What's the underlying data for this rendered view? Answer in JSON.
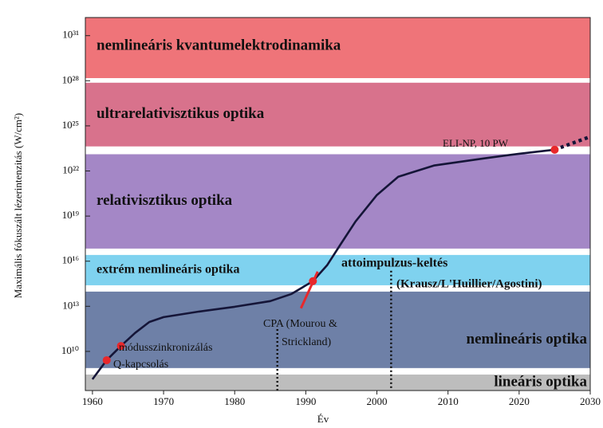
{
  "chart_data": {
    "type": "line",
    "ylabel": "Maximális fókuszált lézerintenzitás (W/cm²)",
    "xlabel": "Év",
    "log_y": true,
    "xlim": [
      1959,
      2030
    ],
    "ylim": [
      25000000.0,
      1.6e+32
    ],
    "xticks": [
      1960,
      1970,
      1980,
      1990,
      2000,
      2010,
      2020,
      2030
    ],
    "yticks": [
      {
        "value": 10000000000.0,
        "label": "10¹⁰"
      },
      {
        "value": 10000000000000.0,
        "label": "10¹³"
      },
      {
        "value": 1e+16,
        "label": "10¹⁶"
      },
      {
        "value": 1e+19,
        "label": "10¹⁹"
      },
      {
        "value": 1e+22,
        "label": "10²²"
      },
      {
        "value": 1e+25,
        "label": "10²⁵"
      },
      {
        "value": 1e+28,
        "label": "10²⁸"
      },
      {
        "value": 1e+31,
        "label": "10³¹"
      }
    ],
    "bands": [
      {
        "label": "nemlineáris kvantumelektrodinamika",
        "range": [
          1.5e+28,
          1.6e+32
        ],
        "color": "#ef7479"
      },
      {
        "label": "ultrarelativisztikus optika",
        "range": [
          4.3e+23,
          7.4e+27
        ],
        "color": "#d8728c"
      },
      {
        "label": "relativisztikus optika",
        "range": [
          6.9e+16,
          1.3e+23
        ],
        "color": "#a487c6"
      },
      {
        "label": "extrém nemlineáris optika",
        "range": [
          250000000000000.0,
          2.6e+16
        ],
        "color": "#7fd2ef"
      },
      {
        "label": "nemlineáris optika",
        "range": [
          780000000.0,
          95000000000000.0
        ],
        "color": "#6e80a7"
      },
      {
        "label": "lineáris optika",
        "range": [
          25000000.0,
          290000000.0
        ],
        "color": "#bdbdbd"
      }
    ],
    "series": [
      {
        "color": "#151538",
        "style": "solid",
        "x": [
          1960,
          1962,
          1964,
          1966,
          1968,
          1970,
          1975,
          1980,
          1985,
          1988,
          1991,
          1993,
          1995,
          1997,
          2000,
          2003,
          2008,
          2015,
          2020,
          2025
        ],
        "values": [
          140000000.0,
          2600000000.0,
          23000000000.0,
          170000000000.0,
          900000000000.0,
          1900000000000.0,
          4500000000000.0,
          9300000000000.0,
          22000000000000.0,
          66000000000000.0,
          470000000000000.0,
          5400000000000000.0,
          1.6e+17,
          4.4e+18,
          2.5e+20,
          4.1e+21,
          2.3e+22,
          6.8e+22,
          1.4e+23,
          2.6e+23
        ]
      },
      {
        "color": "#151538",
        "style": "dotted",
        "x": [
          2025,
          2030
        ],
        "values": [
          2.6e+23,
          1.9e+24
        ]
      }
    ],
    "points": {
      "color": "#e8282b",
      "x": [
        1962,
        1964,
        1991,
        2025
      ],
      "values": [
        2600000000.0,
        23000000000.0,
        470000000000000.0,
        2.6e+23
      ]
    },
    "vlines": {
      "x": [
        1986,
        2002
      ],
      "values": [
        300000000000.0,
        2300000000000000.0
      ]
    },
    "annotations": [
      "ELI-NP, 10 PW",
      "CPA (Mourou &",
      "Strickland)",
      "attoimpulzus-keltés",
      "(Krausz/L'Huillier/Agostini)",
      "módusszinkronizálás",
      "Q-kapcsolás"
    ]
  }
}
